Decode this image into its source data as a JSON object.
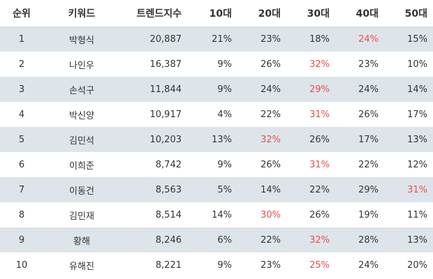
{
  "columns": [
    "순위",
    "키워드",
    "트렌드지수",
    "10대",
    "20대",
    "30대",
    "40대",
    "50대"
  ],
  "highlight_color": "#e8504a",
  "rows": [
    {
      "rank": "1",
      "keyword": "박형식",
      "index": "20,887",
      "a10": "21%",
      "a20": "23%",
      "a30": "18%",
      "a40": "24%",
      "a50": "15%",
      "max": "a40"
    },
    {
      "rank": "2",
      "keyword": "나인우",
      "index": "16,387",
      "a10": "9%",
      "a20": "26%",
      "a30": "32%",
      "a40": "23%",
      "a50": "10%",
      "max": "a30"
    },
    {
      "rank": "3",
      "keyword": "손석구",
      "index": "11,844",
      "a10": "9%",
      "a20": "24%",
      "a30": "29%",
      "a40": "24%",
      "a50": "14%",
      "max": "a30"
    },
    {
      "rank": "4",
      "keyword": "박신양",
      "index": "10,917",
      "a10": "4%",
      "a20": "22%",
      "a30": "31%",
      "a40": "26%",
      "a50": "17%",
      "max": "a30"
    },
    {
      "rank": "5",
      "keyword": "김민석",
      "index": "10,203",
      "a10": "13%",
      "a20": "32%",
      "a30": "26%",
      "a40": "17%",
      "a50": "13%",
      "max": "a20"
    },
    {
      "rank": "6",
      "keyword": "이희준",
      "index": "8,742",
      "a10": "9%",
      "a20": "26%",
      "a30": "31%",
      "a40": "22%",
      "a50": "12%",
      "max": "a30"
    },
    {
      "rank": "7",
      "keyword": "이동건",
      "index": "8,563",
      "a10": "5%",
      "a20": "14%",
      "a30": "22%",
      "a40": "29%",
      "a50": "31%",
      "max": "a50"
    },
    {
      "rank": "8",
      "keyword": "김민재",
      "index": "8,514",
      "a10": "14%",
      "a20": "30%",
      "a30": "26%",
      "a40": "19%",
      "a50": "11%",
      "max": "a20"
    },
    {
      "rank": "9",
      "keyword": "황해",
      "index": "8,246",
      "a10": "6%",
      "a20": "22%",
      "a30": "32%",
      "a40": "28%",
      "a50": "13%",
      "max": "a30"
    },
    {
      "rank": "10",
      "keyword": "유해진",
      "index": "8,221",
      "a10": "9%",
      "a20": "23%",
      "a30": "25%",
      "a40": "24%",
      "a50": "20%",
      "max": "a30"
    }
  ]
}
